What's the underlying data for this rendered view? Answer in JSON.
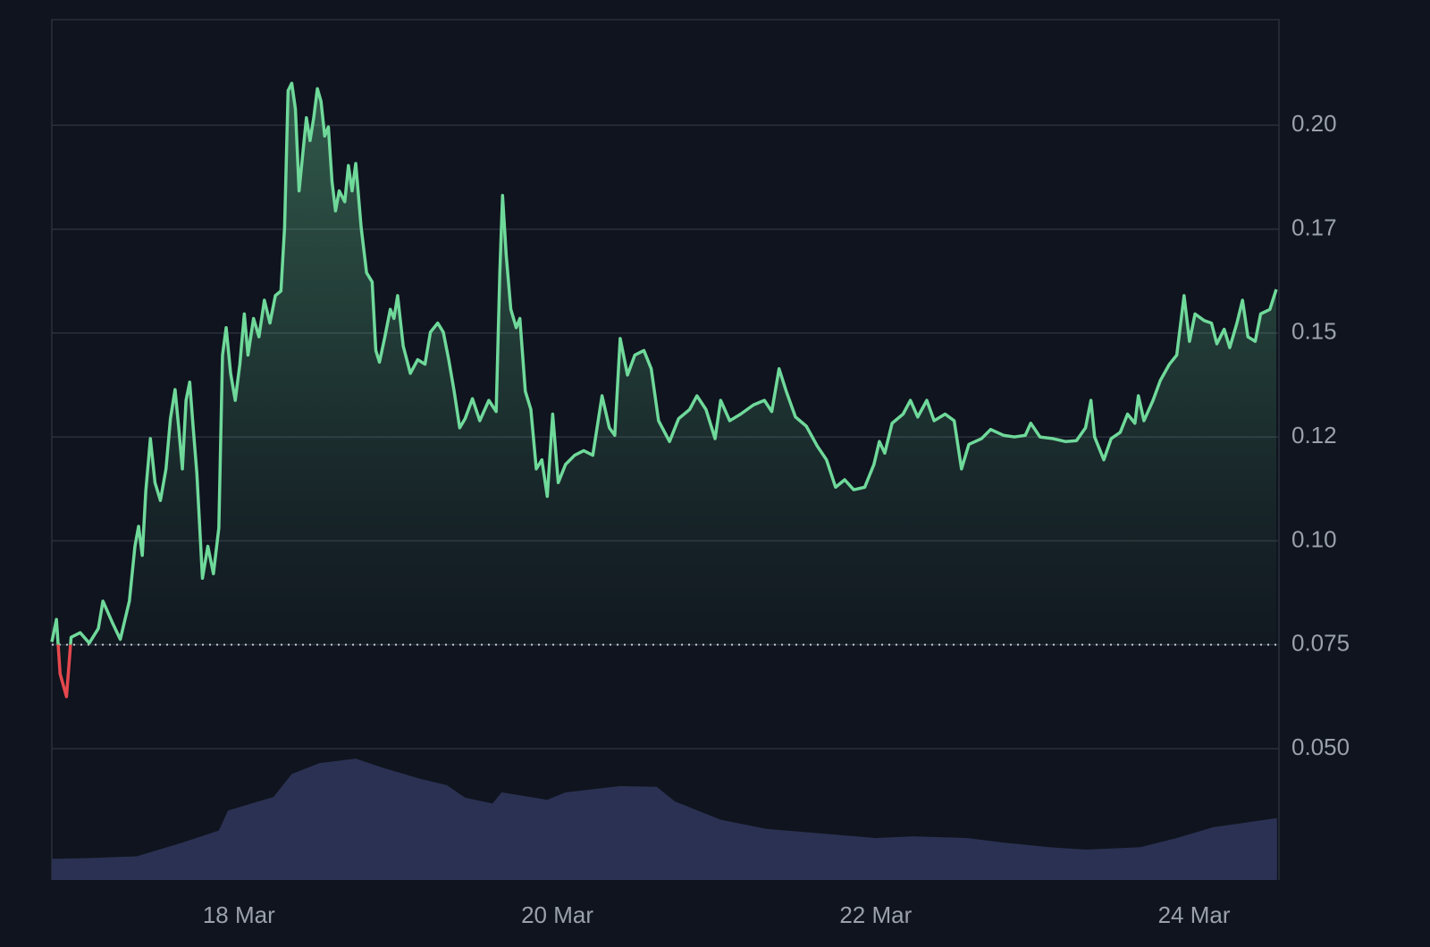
{
  "chart_data": {
    "type": "line",
    "x": [
      16.825,
      16.854,
      16.877,
      16.917,
      16.946,
      17.003,
      17.06,
      17.117,
      17.146,
      17.209,
      17.255,
      17.312,
      17.347,
      17.37,
      17.393,
      17.415,
      17.444,
      17.473,
      17.507,
      17.542,
      17.57,
      17.599,
      17.622,
      17.645,
      17.668,
      17.691,
      17.713,
      17.736,
      17.771,
      17.805,
      17.84,
      17.874,
      17.897,
      17.92,
      17.948,
      17.977,
      18.006,
      18.034,
      18.057,
      18.092,
      18.126,
      18.16,
      18.195,
      18.229,
      18.264,
      18.287,
      18.309,
      18.332,
      18.355,
      18.378,
      18.401,
      18.424,
      18.447,
      18.47,
      18.493,
      18.516,
      18.539,
      18.562,
      18.585,
      18.607,
      18.63,
      18.665,
      18.688,
      18.711,
      18.734,
      18.768,
      18.802,
      18.837,
      18.86,
      18.883,
      18.917,
      18.951,
      18.974,
      18.997,
      19.032,
      19.077,
      19.123,
      19.169,
      19.203,
      19.249,
      19.284,
      19.318,
      19.352,
      19.387,
      19.421,
      19.467,
      19.513,
      19.57,
      19.616,
      19.639,
      19.656,
      19.679,
      19.708,
      19.742,
      19.765,
      19.799,
      19.834,
      19.868,
      19.903,
      19.937,
      19.971,
      20.006,
      20.052,
      20.109,
      20.166,
      20.223,
      20.281,
      20.327,
      20.361,
      20.395,
      20.441,
      20.487,
      20.544,
      20.59,
      20.636,
      20.705,
      20.762,
      20.831,
      20.877,
      20.934,
      20.991,
      21.026,
      21.083,
      21.152,
      21.232,
      21.301,
      21.347,
      21.393,
      21.438,
      21.496,
      21.564,
      21.633,
      21.691,
      21.748,
      21.805,
      21.862,
      21.931,
      21.989,
      22.023,
      22.057,
      22.103,
      22.172,
      22.218,
      22.264,
      22.321,
      22.367,
      22.436,
      22.493,
      22.539,
      22.585,
      22.665,
      22.722,
      22.802,
      22.871,
      22.94,
      22.974,
      23.032,
      23.112,
      23.192,
      23.261,
      23.318,
      23.352,
      23.375,
      23.433,
      23.479,
      23.536,
      23.582,
      23.628,
      23.65,
      23.685,
      23.742,
      23.788,
      23.845,
      23.891,
      23.937,
      23.971,
      24.006,
      24.063,
      24.109,
      24.143,
      24.189,
      24.224,
      24.269,
      24.304,
      24.338,
      24.384,
      24.418,
      24.476,
      24.516
    ],
    "values": [
      0.0757,
      0.0811,
      0.068,
      0.0625,
      0.0768,
      0.0779,
      0.0754,
      0.0789,
      0.0855,
      0.08,
      0.0763,
      0.0855,
      0.0987,
      0.1035,
      0.0965,
      0.1119,
      0.1246,
      0.114,
      0.1097,
      0.1173,
      0.1294,
      0.1364,
      0.1272,
      0.1173,
      0.1338,
      0.1382,
      0.1272,
      0.1162,
      0.091,
      0.0987,
      0.0921,
      0.1031,
      0.1447,
      0.1513,
      0.1403,
      0.1338,
      0.1425,
      0.1546,
      0.1447,
      0.1535,
      0.1491,
      0.1579,
      0.1524,
      0.159,
      0.1601,
      0.1754,
      0.2083,
      0.2101,
      0.2039,
      0.1842,
      0.193,
      0.2018,
      0.1963,
      0.2018,
      0.2088,
      0.2057,
      0.1974,
      0.1996,
      0.1864,
      0.1794,
      0.1842,
      0.1816,
      0.1903,
      0.1842,
      0.1908,
      0.1754,
      0.1645,
      0.1623,
      0.1458,
      0.143,
      0.1491,
      0.1557,
      0.1535,
      0.159,
      0.1469,
      0.1403,
      0.1436,
      0.1425,
      0.1502,
      0.1524,
      0.1502,
      0.1436,
      0.136,
      0.1272,
      0.1294,
      0.1342,
      0.1289,
      0.1338,
      0.1311,
      0.1645,
      0.1831,
      0.1688,
      0.1557,
      0.1513,
      0.1535,
      0.136,
      0.1316,
      0.1173,
      0.1195,
      0.1107,
      0.1305,
      0.114,
      0.1184,
      0.1206,
      0.1217,
      0.1206,
      0.1349,
      0.1272,
      0.1254,
      0.1487,
      0.1399,
      0.1447,
      0.1458,
      0.1414,
      0.1289,
      0.1239,
      0.1294,
      0.1316,
      0.1349,
      0.1316,
      0.1246,
      0.1338,
      0.1289,
      0.1305,
      0.1327,
      0.1338,
      0.1311,
      0.1414,
      0.136,
      0.1298,
      0.1276,
      0.1228,
      0.1195,
      0.1129,
      0.1147,
      0.1123,
      0.1129,
      0.1184,
      0.1239,
      0.1211,
      0.1283,
      0.1305,
      0.1338,
      0.1298,
      0.1338,
      0.1289,
      0.1305,
      0.1289,
      0.1173,
      0.1232,
      0.1246,
      0.1268,
      0.1254,
      0.125,
      0.1254,
      0.1283,
      0.125,
      0.1246,
      0.1239,
      0.1241,
      0.1272,
      0.1338,
      0.125,
      0.1195,
      0.1246,
      0.1261,
      0.1305,
      0.1283,
      0.1349,
      0.1289,
      0.1338,
      0.1386,
      0.1425,
      0.1447,
      0.159,
      0.148,
      0.1546,
      0.153,
      0.1524,
      0.1474,
      0.1509,
      0.1465,
      0.1524,
      0.1579,
      0.1491,
      0.148,
      0.1546,
      0.1557,
      0.1605
    ],
    "color": "#6fd99a",
    "down_color": "#e5484d",
    "baseline": 0.075,
    "volume": {
      "x": [
        16.825,
        17.072,
        17.358,
        17.645,
        17.874,
        17.931,
        18.218,
        18.332,
        18.504,
        18.734,
        18.905,
        19.135,
        19.307,
        19.421,
        19.593,
        19.65,
        19.937,
        20.052,
        20.395,
        20.625,
        20.739,
        21.026,
        21.312,
        21.656,
        22.0,
        22.229,
        22.573,
        22.802,
        23.089,
        23.318,
        23.662,
        23.891,
        24.12,
        24.521
      ],
      "values": [
        0.0235,
        0.0237,
        0.0241,
        0.0274,
        0.0303,
        0.0351,
        0.0384,
        0.0439,
        0.0465,
        0.0476,
        0.0454,
        0.0428,
        0.0412,
        0.0382,
        0.0368,
        0.0395,
        0.0377,
        0.0395,
        0.041,
        0.0408,
        0.0373,
        0.0329,
        0.0307,
        0.0296,
        0.0285,
        0.0289,
        0.0285,
        0.0274,
        0.0263,
        0.0257,
        0.0263,
        0.0285,
        0.0311,
        0.0333
      ],
      "color": "#2b3152"
    },
    "xlim": [
      16.825,
      24.533
    ],
    "xticks": [
      {
        "value": 18,
        "label": "18 Mar"
      },
      {
        "value": 20,
        "label": "20 Mar"
      },
      {
        "value": 22,
        "label": "22 Mar"
      },
      {
        "value": 24,
        "label": "24 Mar"
      }
    ],
    "ylim": [
      0.0184,
      0.2254
    ],
    "yticks": [
      {
        "value": 0.05,
        "label": "0.050"
      },
      0.075,
      {
        "value": 0.1,
        "label": "0.10"
      },
      {
        "value": 0.125,
        "label": "0.12"
      },
      0.15,
      {
        "value": 0.175,
        "label": "0.17"
      },
      {
        "value": 0.2,
        "label": "0.20"
      }
    ],
    "grid": true
  }
}
